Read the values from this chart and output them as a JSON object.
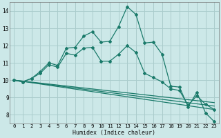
{
  "xlabel": "Humidex (Indice chaleur)",
  "background_color": "#cce8e8",
  "grid_color": "#aacccc",
  "line_color": "#1a7a6a",
  "xlim": [
    -0.5,
    23.5
  ],
  "ylim": [
    7.5,
    14.5
  ],
  "yticks": [
    8,
    9,
    10,
    11,
    12,
    13,
    14
  ],
  "xticks": [
    0,
    1,
    2,
    3,
    4,
    5,
    6,
    7,
    8,
    9,
    10,
    11,
    12,
    13,
    14,
    15,
    16,
    17,
    18,
    19,
    20,
    21,
    22,
    23
  ],
  "lines": [
    {
      "x": [
        0,
        1,
        2,
        3,
        4,
        5,
        6,
        7,
        8,
        9,
        10,
        11,
        12,
        13,
        14,
        15,
        16,
        17,
        18,
        19,
        20,
        21,
        22,
        23
      ],
      "y": [
        10.0,
        9.9,
        10.1,
        10.5,
        11.0,
        10.85,
        11.85,
        11.9,
        12.55,
        12.8,
        12.2,
        12.25,
        13.1,
        14.25,
        13.8,
        12.15,
        12.2,
        11.5,
        9.65,
        9.6,
        8.45,
        9.3,
        8.1,
        7.6
      ]
    },
    {
      "x": [
        0,
        1,
        2,
        3,
        4,
        5,
        6,
        7,
        8,
        9,
        10,
        11,
        12,
        13,
        14,
        15,
        16,
        17,
        18,
        19,
        20,
        21,
        22,
        23
      ],
      "y": [
        10.0,
        9.9,
        10.1,
        10.4,
        10.9,
        10.75,
        11.55,
        11.45,
        11.85,
        11.9,
        11.1,
        11.1,
        11.5,
        12.0,
        11.6,
        10.4,
        10.15,
        9.9,
        9.5,
        9.4,
        8.55,
        9.1,
        8.6,
        8.3
      ]
    },
    {
      "x": [
        0,
        23
      ],
      "y": [
        10.0,
        8.7
      ]
    },
    {
      "x": [
        0,
        23
      ],
      "y": [
        10.0,
        8.5
      ]
    },
    {
      "x": [
        0,
        23
      ],
      "y": [
        10.0,
        8.3
      ]
    }
  ]
}
